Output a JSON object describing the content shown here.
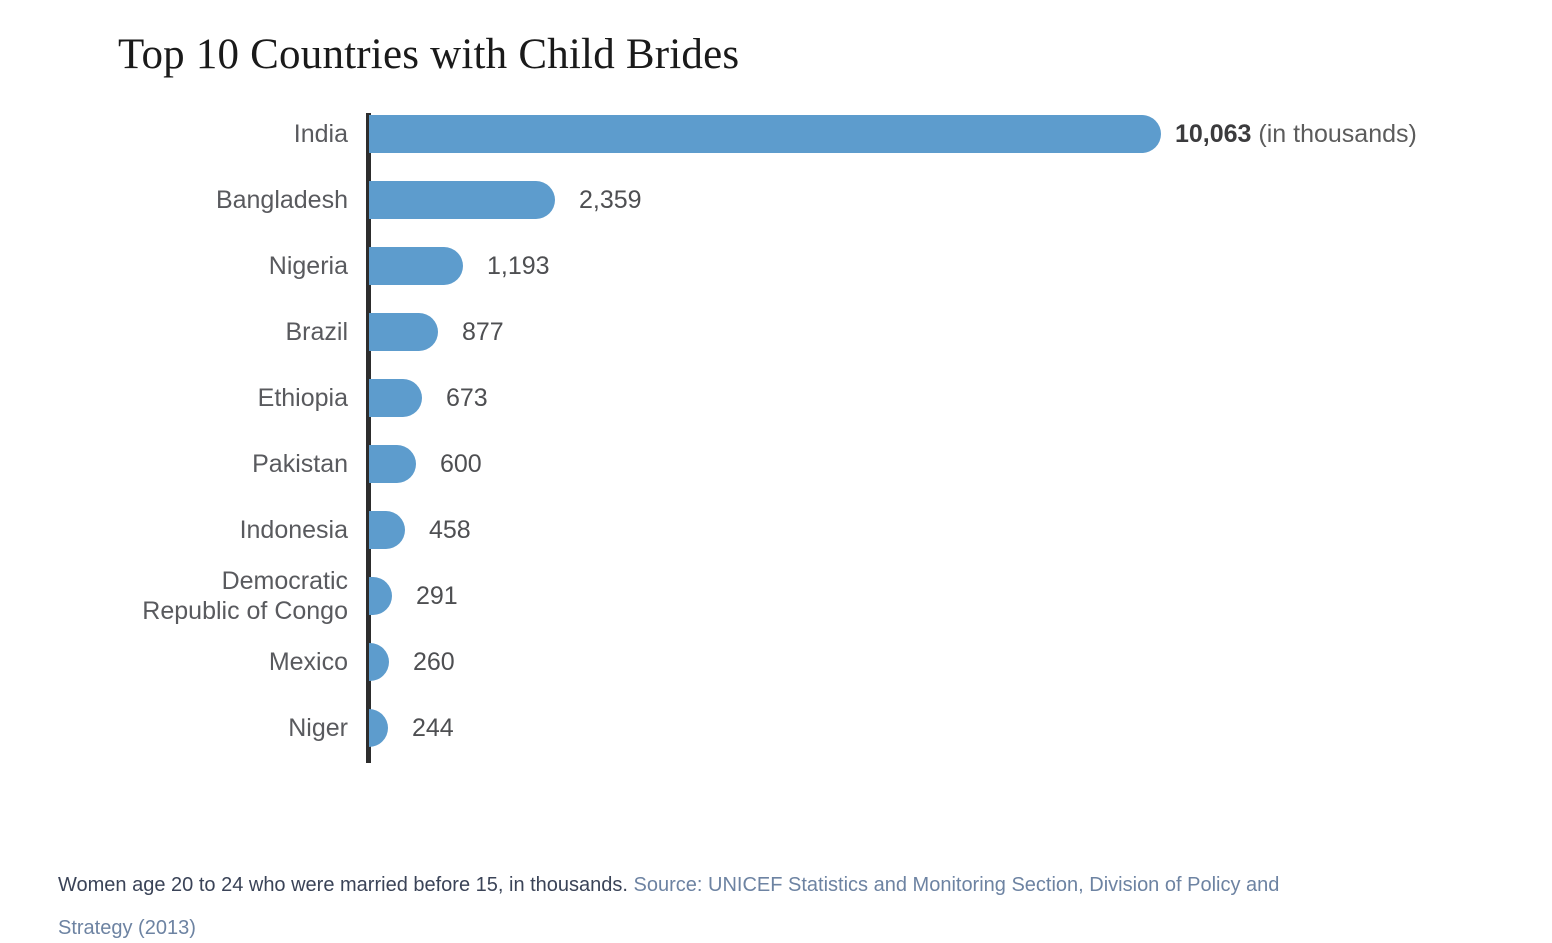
{
  "title": "Top 10 Countries with Child Brides",
  "chart_data": {
    "type": "bar",
    "orientation": "horizontal",
    "title": "Top 10 Countries with Child Brides",
    "xlabel": "",
    "ylabel": "",
    "unit": "thousands",
    "xlim": [
      0,
      10063
    ],
    "grid": false,
    "legend": false,
    "categories": [
      "India",
      "Bangladesh",
      "Nigeria",
      "Brazil",
      "Ethiopia",
      "Pakistan",
      "Indonesia",
      "Democratic Republic of Congo",
      "Mexico",
      "Niger"
    ],
    "category_lines": [
      [
        "India"
      ],
      [
        "Bangladesh"
      ],
      [
        "Nigeria"
      ],
      [
        "Brazil"
      ],
      [
        "Ethiopia"
      ],
      [
        "Pakistan"
      ],
      [
        "Indonesia"
      ],
      [
        "Democratic",
        "Republic of Congo"
      ],
      [
        "Mexico"
      ],
      [
        "Niger"
      ]
    ],
    "values": [
      10063,
      2359,
      1193,
      877,
      673,
      600,
      458,
      291,
      260,
      244
    ],
    "value_labels": [
      "10,063",
      "2,359",
      "1,193",
      "877",
      "673",
      "600",
      "458",
      "291",
      "260",
      "244"
    ],
    "first_value_suffix": "(in thousands)",
    "bar_color": "#5d9ccd",
    "axis_color": "#2d2d2d"
  },
  "caption": {
    "description": "Women age 20 to 24 who were married before 15, in thousands.",
    "source_line1": "Source: UNICEF Statistics and Monitoring Section, Division of Policy and",
    "source_line2": "Strategy (2013)"
  }
}
